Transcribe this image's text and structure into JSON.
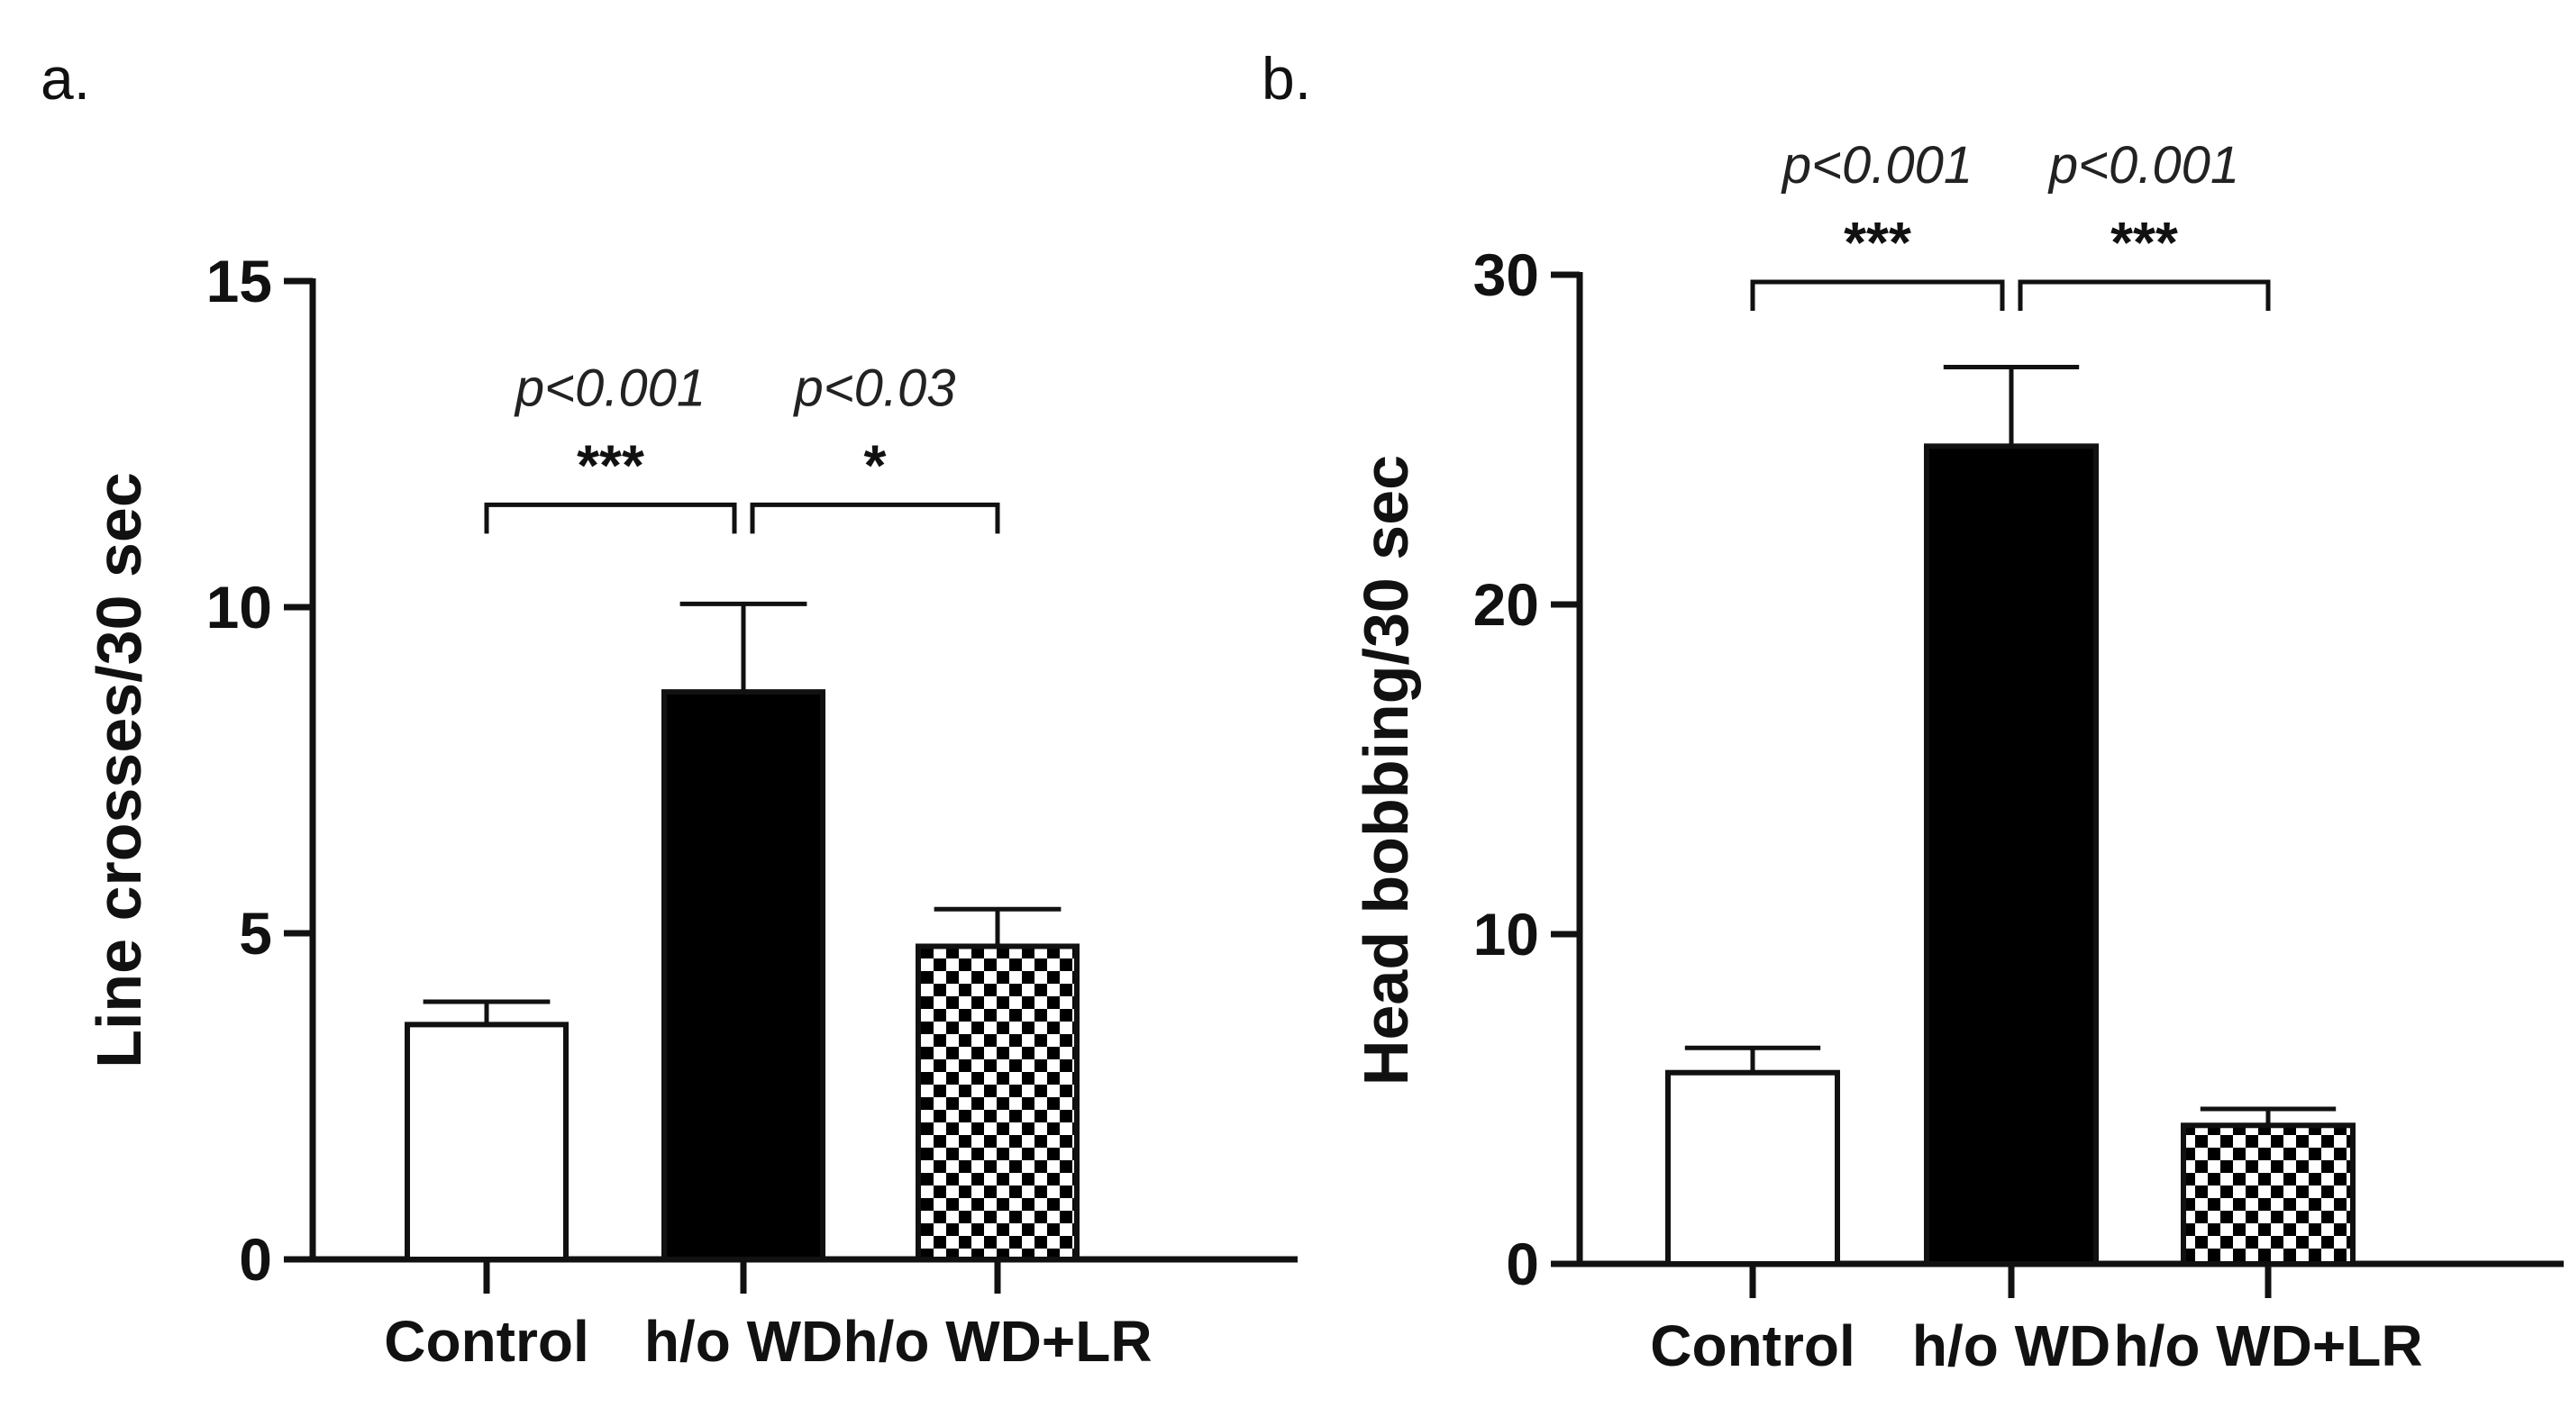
{
  "chart_data": [
    {
      "panel_label": "a.",
      "type": "bar",
      "title": "",
      "xlabel": "",
      "ylabel": "Line crosses/30 sec",
      "ylim": [
        0,
        15
      ],
      "yticks": [
        0,
        5,
        10,
        15
      ],
      "categories": [
        "Control",
        "h/o WD",
        "h/o WD+LR"
      ],
      "values": [
        3.6,
        8.7,
        4.8
      ],
      "errors": [
        0.35,
        1.35,
        0.57
      ],
      "fills": [
        "white",
        "black",
        "checker"
      ],
      "comparisons": [
        {
          "from": 0,
          "to": 1,
          "p": "p<0.001",
          "stars": "***"
        },
        {
          "from": 1,
          "to": 2,
          "p": "p<0.03",
          "stars": "*"
        }
      ]
    },
    {
      "panel_label": "b.",
      "type": "bar",
      "title": "",
      "xlabel": "",
      "ylabel": "Head bobbing/30 sec",
      "ylim": [
        0,
        30
      ],
      "yticks": [
        0,
        10,
        20,
        30
      ],
      "categories": [
        "Control",
        "h/o WD",
        "h/o WD+LR"
      ],
      "values": [
        5.8,
        24.8,
        4.2
      ],
      "errors": [
        0.75,
        2.4,
        0.5
      ],
      "fills": [
        "white",
        "black",
        "checker"
      ],
      "comparisons": [
        {
          "from": 0,
          "to": 1,
          "p": "p<0.001",
          "stars": "***"
        },
        {
          "from": 1,
          "to": 2,
          "p": "p<0.001",
          "stars": "***"
        }
      ]
    }
  ]
}
